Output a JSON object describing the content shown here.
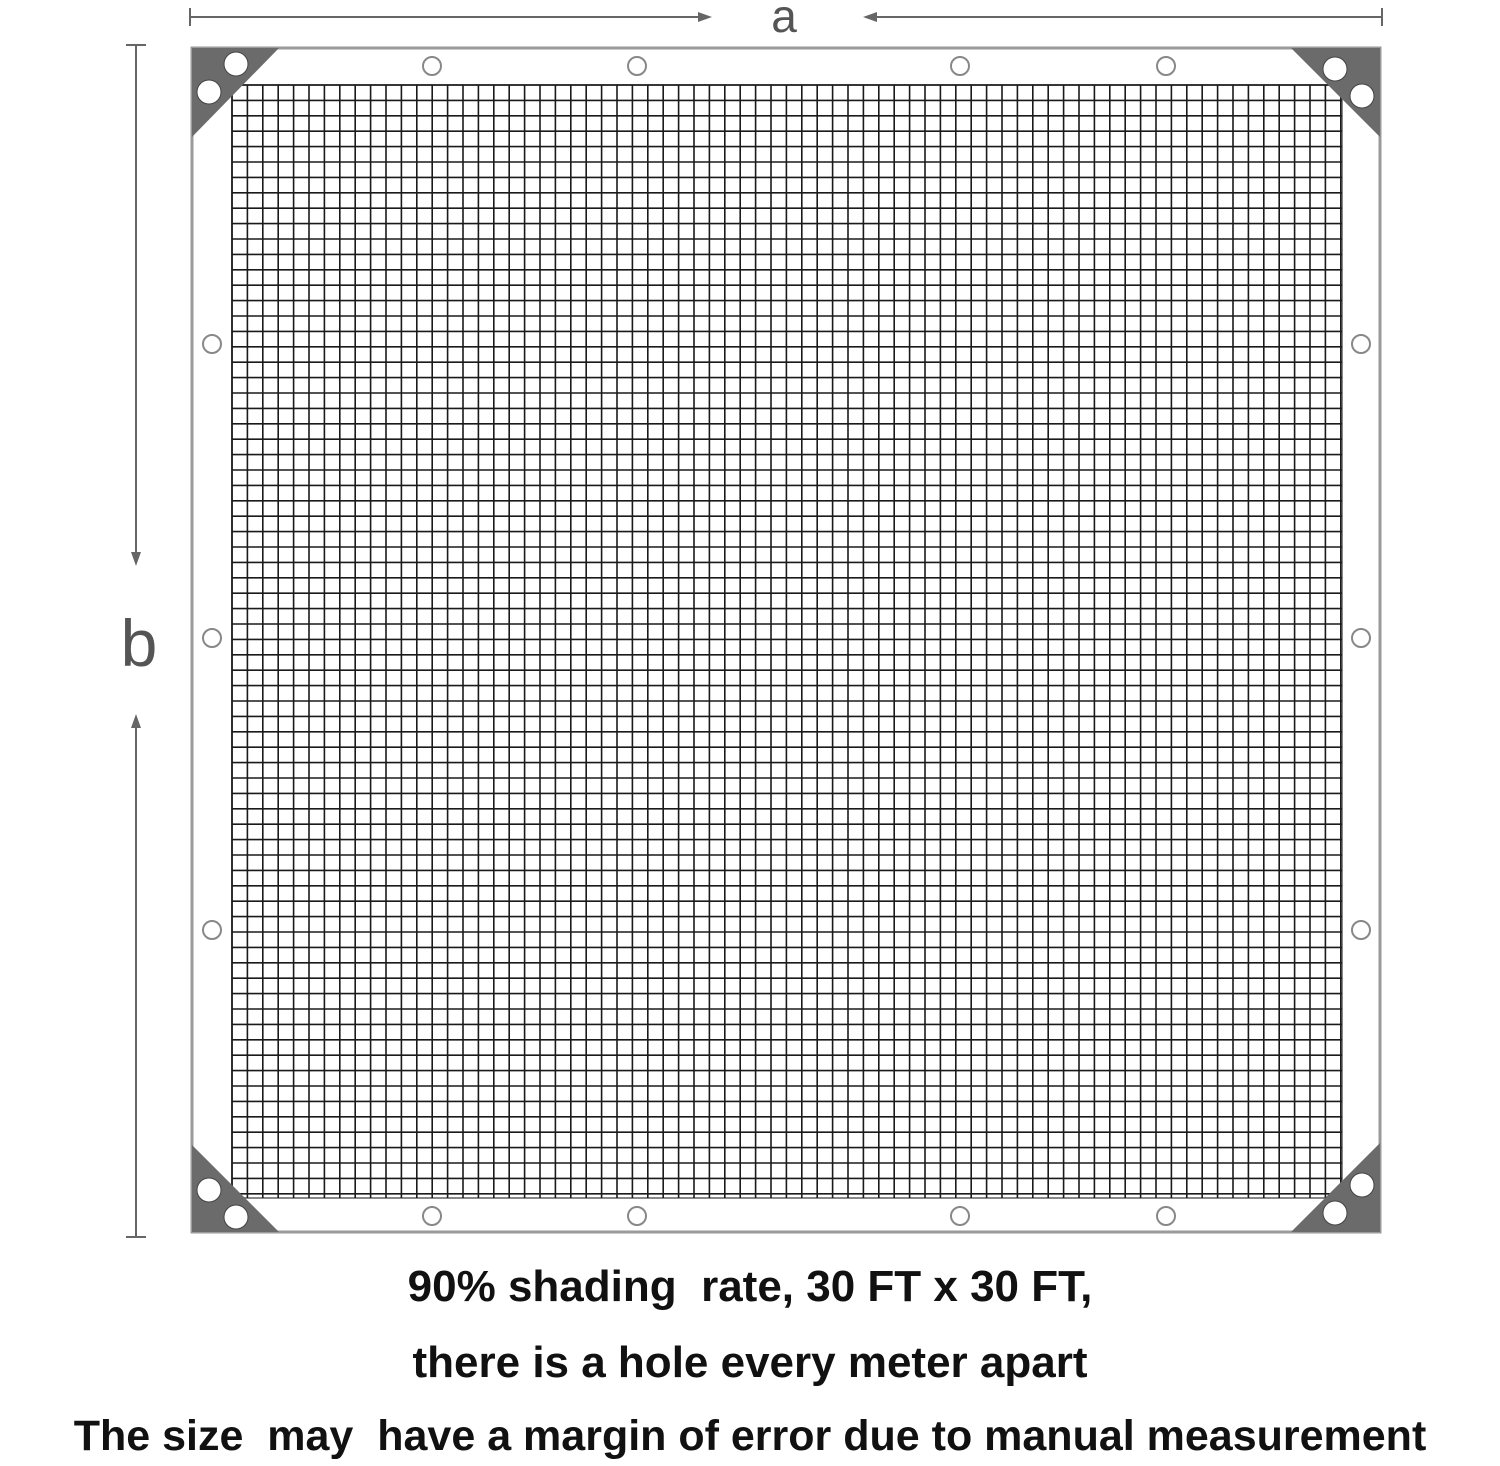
{
  "dimensions": {
    "width_label": "a",
    "height_label": "b"
  },
  "captions": [
    "90% shading  rate, 30 FT x 30 FT,",
    "there is a hole every meter apart",
    "The size  may  have a margin of error due to manual measurement"
  ],
  "colors": {
    "corner_patch": "#6b6b6b",
    "mesh": "#1a1a1a",
    "frame": "#9a9a9a",
    "arrow": "#666666"
  },
  "grommets": {
    "top": 4,
    "bottom": 4,
    "left": 3,
    "right": 3,
    "corner_pairs": 4
  }
}
